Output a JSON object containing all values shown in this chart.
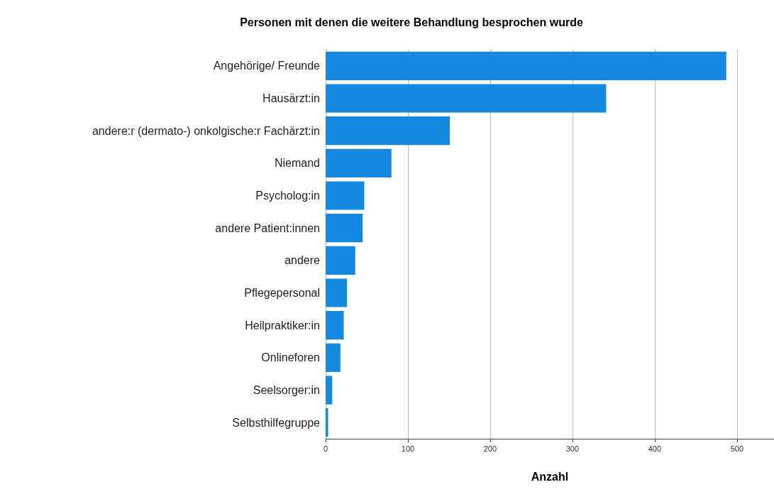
{
  "chart_data": {
    "type": "bar",
    "orientation": "horizontal",
    "title": "Personen mit denen die weitere Behandlung besprochen wurde",
    "xlabel": "Anzahl",
    "categories": [
      "Angehörige/ Freunde",
      "Hausärzt:in",
      "andere:r (dermato-) onkolgische:r Fachärzt:in",
      "Niemand",
      "Psycholog:in",
      "andere Patient:innen",
      "andere",
      "Pflegepersonal",
      "Heilpraktiker:in",
      "Onlineforen",
      "Seelsorger:in",
      "Selbsthilfegruppe"
    ],
    "values": [
      487,
      341,
      151,
      80,
      47,
      45,
      36,
      26,
      22,
      18,
      8,
      3
    ],
    "color": "#1589e0",
    "xlim": [
      0,
      545
    ],
    "xticks": [
      0,
      100,
      200,
      300,
      400,
      500
    ],
    "grid": "x"
  }
}
